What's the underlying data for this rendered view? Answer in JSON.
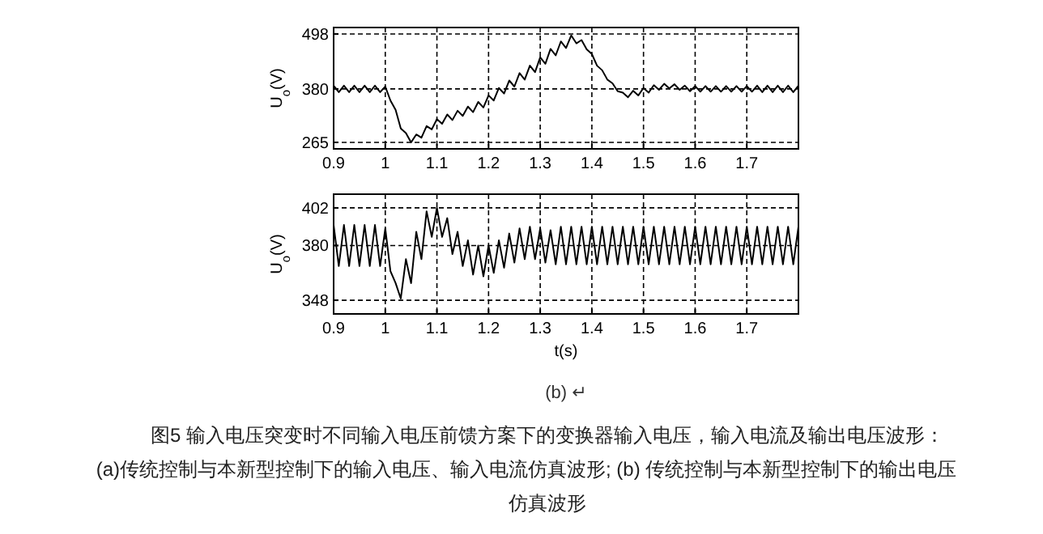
{
  "chart_data": [
    {
      "type": "line",
      "ylabel": "U$_{o}$(V)",
      "xlim": [
        0.9,
        1.8
      ],
      "ylim": [
        251,
        512
      ],
      "xticks": [
        0.9,
        1,
        1.1,
        1.2,
        1.3,
        1.4,
        1.5,
        1.6,
        1.7
      ],
      "yticks": [
        265,
        380,
        498
      ],
      "grid": true,
      "line_style": "solid",
      "x": [
        0.9,
        0.91,
        0.92,
        0.93,
        0.94,
        0.95,
        0.96,
        0.97,
        0.98,
        0.99,
        1,
        1.01,
        1.02,
        1.03,
        1.04,
        1.05,
        1.06,
        1.07,
        1.08,
        1.09,
        1.1,
        1.11,
        1.12,
        1.13,
        1.14,
        1.15,
        1.16,
        1.17,
        1.18,
        1.19,
        1.2,
        1.21,
        1.22,
        1.23,
        1.24,
        1.25,
        1.26,
        1.27,
        1.28,
        1.29,
        1.3,
        1.31,
        1.32,
        1.33,
        1.34,
        1.35,
        1.36,
        1.37,
        1.38,
        1.39,
        1.4,
        1.41,
        1.42,
        1.43,
        1.44,
        1.45,
        1.46,
        1.47,
        1.48,
        1.49,
        1.5,
        1.51,
        1.52,
        1.53,
        1.54,
        1.55,
        1.56,
        1.57,
        1.58,
        1.59,
        1.6,
        1.61,
        1.62,
        1.63,
        1.64,
        1.65,
        1.66,
        1.67,
        1.68,
        1.69,
        1.7,
        1.71,
        1.72,
        1.73,
        1.74,
        1.75,
        1.76,
        1.77,
        1.78,
        1.79,
        1.8
      ],
      "series": [
        {
          "color": "#000000",
          "values": [
            387,
            373,
            387,
            373,
            387,
            373,
            387,
            373,
            387,
            373,
            385,
            355,
            335,
            295,
            285,
            265,
            282,
            275,
            300,
            293,
            315,
            305,
            325,
            313,
            333,
            322,
            342,
            330,
            352,
            340,
            366,
            355,
            382,
            370,
            398,
            385,
            414,
            400,
            430,
            416,
            448,
            434,
            466,
            452,
            482,
            468,
            495,
            478,
            485,
            465,
            455,
            430,
            420,
            400,
            392,
            375,
            372,
            362,
            376,
            366,
            382,
            372,
            388,
            378,
            391,
            381,
            390,
            378,
            387,
            375,
            386,
            374,
            386,
            374,
            386,
            374,
            386,
            374,
            386,
            374,
            386,
            374,
            387,
            373,
            387,
            373,
            387,
            373,
            387,
            373,
            387
          ]
        }
      ]
    },
    {
      "type": "line",
      "ylabel": "U$_{o}$(V)",
      "xlabel": "t(s)",
      "xlim": [
        0.9,
        1.8
      ],
      "ylim": [
        340,
        410
      ],
      "xticks": [
        0.9,
        1,
        1.1,
        1.2,
        1.3,
        1.4,
        1.5,
        1.6,
        1.7
      ],
      "yticks": [
        348,
        380,
        402
      ],
      "grid": true,
      "line_style": "solid",
      "x": [
        0.9,
        0.91,
        0.92,
        0.93,
        0.94,
        0.95,
        0.96,
        0.97,
        0.98,
        0.99,
        1,
        1.01,
        1.02,
        1.03,
        1.04,
        1.05,
        1.06,
        1.07,
        1.08,
        1.09,
        1.1,
        1.11,
        1.12,
        1.13,
        1.14,
        1.15,
        1.16,
        1.17,
        1.18,
        1.19,
        1.2,
        1.21,
        1.22,
        1.23,
        1.24,
        1.25,
        1.26,
        1.27,
        1.28,
        1.29,
        1.3,
        1.31,
        1.32,
        1.33,
        1.34,
        1.35,
        1.36,
        1.37,
        1.38,
        1.39,
        1.4,
        1.41,
        1.42,
        1.43,
        1.44,
        1.45,
        1.46,
        1.47,
        1.48,
        1.49,
        1.5,
        1.51,
        1.52,
        1.53,
        1.54,
        1.55,
        1.56,
        1.57,
        1.58,
        1.59,
        1.6,
        1.61,
        1.62,
        1.63,
        1.64,
        1.65,
        1.66,
        1.67,
        1.68,
        1.69,
        1.7,
        1.71,
        1.72,
        1.73,
        1.74,
        1.75,
        1.76,
        1.77,
        1.78,
        1.79,
        1.8
      ],
      "series": [
        {
          "color": "#000000",
          "values": [
            392,
            368,
            392,
            368,
            392,
            368,
            392,
            368,
            392,
            368,
            390,
            365,
            358,
            349,
            372,
            358,
            388,
            372,
            400,
            385,
            402,
            385,
            396,
            375,
            388,
            368,
            383,
            363,
            380,
            362,
            380,
            364,
            383,
            367,
            387,
            370,
            390,
            372,
            391,
            372,
            390,
            370,
            389,
            369,
            391,
            369,
            391,
            369,
            391,
            369,
            391,
            369,
            391,
            369,
            391,
            369,
            391,
            369,
            391,
            369,
            391,
            369,
            391,
            369,
            391,
            369,
            391,
            369,
            391,
            369,
            391,
            369,
            391,
            369,
            391,
            369,
            391,
            369,
            391,
            369,
            391,
            369,
            391,
            369,
            391,
            369,
            391,
            369,
            391,
            369,
            391
          ]
        }
      ],
      "annotations": [
        "(b) ↵",
        "图5  输入电压突变时不同输入电压前馈方案下的变换器输入电压，输入电流及输出电压波形：",
        "(a)传统控制与本新型控制下的输入电压、输入电流仿真波形; (b) 传统控制与本新型控制下的输出电压",
        "仿真波形"
      ]
    }
  ]
}
